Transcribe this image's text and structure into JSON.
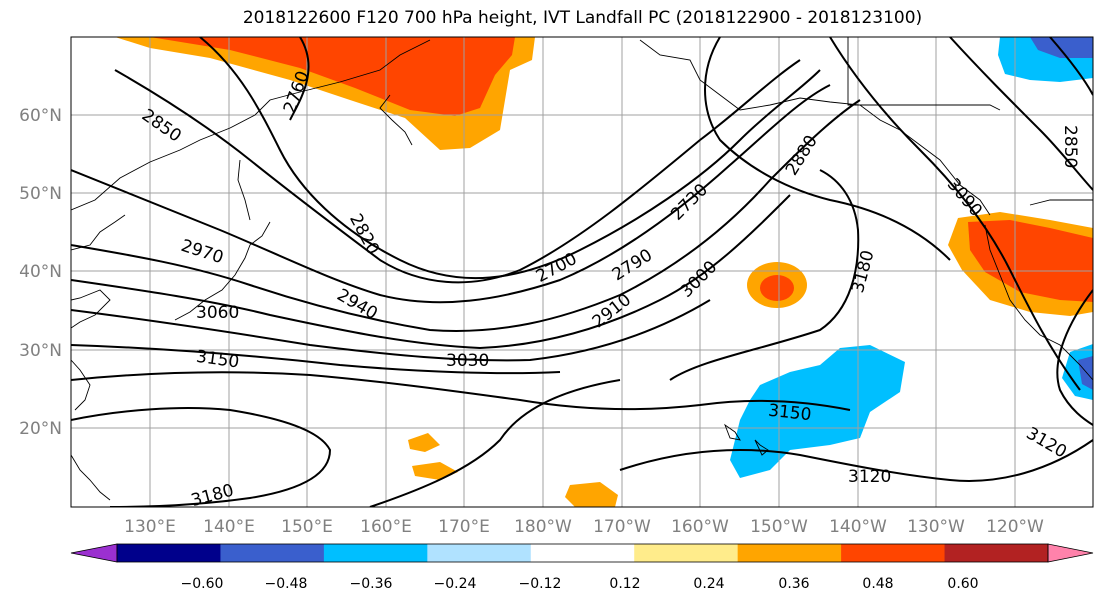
{
  "title": "2018122600 F120 700 hPa height, IVT Landfall PC (2018122900 - 2018123100)",
  "map": {
    "lat_labels": [
      "20°N",
      "30°N",
      "40°N",
      "50°N",
      "60°N"
    ],
    "lon_labels": [
      "130°E",
      "140°E",
      "150°E",
      "160°E",
      "170°E",
      "180°W",
      "170°W",
      "160°W",
      "150°W",
      "140°W",
      "130°W",
      "120°W"
    ],
    "contour_labels": [
      "2760",
      "2850",
      "2820",
      "2970",
      "3060",
      "2940",
      "3150",
      "3030",
      "3180",
      "2700",
      "2730",
      "2790",
      "2910",
      "3000",
      "2880",
      "3090",
      "3180",
      "3150",
      "3120",
      "3120",
      "2850"
    ]
  },
  "colorbar": {
    "ticks": [
      "−0.60",
      "−0.48",
      "−0.36",
      "−0.24",
      "−0.12",
      "0.12",
      "0.24",
      "0.36",
      "0.48",
      "0.60"
    ],
    "colors": [
      "#9b30d0",
      "#00008b",
      "#3a5fcd",
      "#00bfff",
      "#b0e2ff",
      "#ffffff",
      "#ffec8b",
      "#ffa500",
      "#ff4500",
      "#b22222",
      "#ff82ab"
    ]
  }
}
